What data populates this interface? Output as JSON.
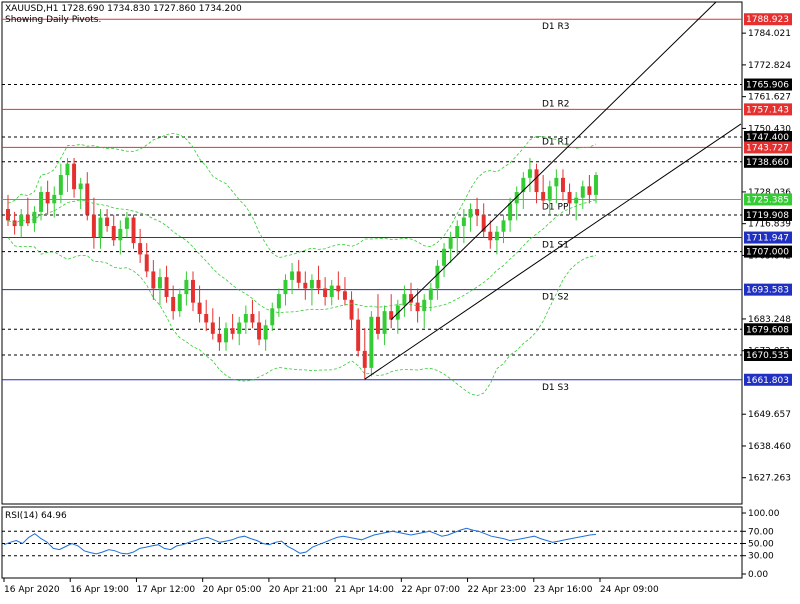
{
  "header": {
    "symbol_line": "XAUUSD,H1  1728.690 1734.830 1727.860 1734.200",
    "subtitle": "Showing Daily Pivots."
  },
  "rsi": {
    "label": "RSI(14) 64.96",
    "ticks": [
      "100.00",
      "70.00",
      "50.00",
      "30.00",
      "0.00"
    ],
    "tick_values": [
      100,
      70,
      50,
      30,
      0
    ],
    "levels": [
      70,
      50,
      30
    ],
    "color": "#1e6fd9",
    "values": [
      48,
      52,
      55,
      50,
      60,
      66,
      58,
      52,
      42,
      40,
      45,
      50,
      46,
      38,
      35,
      33,
      36,
      40,
      38,
      34,
      33,
      36,
      42,
      44,
      46,
      48,
      42,
      40,
      46,
      48,
      52,
      55,
      58,
      60,
      56,
      52,
      54,
      56,
      60,
      62,
      58,
      55,
      50,
      48,
      52,
      54,
      45,
      40,
      34,
      36,
      44,
      48,
      52,
      56,
      60,
      62,
      60,
      58,
      56,
      60,
      64,
      66,
      68,
      70,
      68,
      66,
      64,
      66,
      68,
      70,
      66,
      62,
      64,
      68,
      72,
      75,
      72,
      70,
      66,
      62,
      60,
      58,
      55,
      56,
      58,
      60,
      62,
      58,
      55,
      52,
      54,
      56,
      58,
      60,
      62,
      64,
      65
    ]
  },
  "pivots": [
    {
      "label": "D1 R3",
      "value": "1788.923",
      "color": "#e53030"
    },
    {
      "label": "D1 R2",
      "value": "1757.143",
      "color": "#e53030"
    },
    {
      "label": "D1 R1",
      "value": "1743.727",
      "color": "#e53030"
    },
    {
      "label": "D1 PP",
      "value": "1725.385",
      "color": "#33cc33"
    },
    {
      "label": "D1 S1",
      "value": "1711.947",
      "color": "#2030c0"
    },
    {
      "label": "D1 S2",
      "value": "1693.583",
      "color": "#2030c0"
    },
    {
      "label": "D1 S3",
      "value": "1661.803",
      "color": "#2030c0"
    }
  ],
  "price_tags": [
    {
      "value": "1765.906",
      "style": "dashed"
    },
    {
      "value": "1747.400",
      "style": "dashed"
    },
    {
      "value": "1738.660",
      "style": "dashed"
    },
    {
      "value": "1719.908",
      "style": "dashed"
    },
    {
      "value": "1707.000",
      "style": "dashed"
    },
    {
      "value": "1679.608",
      "style": "dashed"
    },
    {
      "value": "1670.535",
      "style": "dashed"
    }
  ],
  "price_axis_ticks": [
    "1784.021",
    "1772.824",
    "1761.627",
    "1750.430",
    "1728.036",
    "1716.839",
    "1705.642",
    "1683.248",
    "1672.051",
    "1649.657",
    "1638.460",
    "1627.263"
  ],
  "time_axis_labels": [
    "16 Apr 2020",
    "16 Apr 19:00",
    "17 Apr 12:00",
    "20 Apr 05:00",
    "20 Apr 21:00",
    "21 Apr 14:00",
    "22 Apr 07:00",
    "22 Apr 23:00",
    "23 Apr 16:00",
    "24 Apr 09:00"
  ],
  "colors": {
    "bull": "#33cc33",
    "bear": "#e53030",
    "band": "#33cc33",
    "channel": "#000000",
    "grid_dashed": "#000000",
    "tag_bg": "#000000",
    "tag_text": "#ffffff",
    "pivot_tag_red_bg": "#e53030"
  },
  "chart_data": {
    "type": "candlestick",
    "title": "XAUUSD,H1  1728.690 1734.830 1727.860 1734.200",
    "subtitle": "Showing Daily Pivots.",
    "ylim": [
      1618,
      1795
    ],
    "candles": [
      [
        1722,
        1727,
        1716,
        1718
      ],
      [
        1718,
        1721,
        1713,
        1716
      ],
      [
        1716,
        1722,
        1712,
        1720
      ],
      [
        1720,
        1726,
        1716,
        1717
      ],
      [
        1717,
        1723,
        1714,
        1721
      ],
      [
        1721,
        1730,
        1718,
        1728
      ],
      [
        1728,
        1732,
        1720,
        1724
      ],
      [
        1724,
        1730,
        1719,
        1727
      ],
      [
        1727,
        1738,
        1724,
        1734
      ],
      [
        1734,
        1740,
        1728,
        1738
      ],
      [
        1738,
        1740,
        1726,
        1729
      ],
      [
        1729,
        1733,
        1722,
        1731
      ],
      [
        1731,
        1735,
        1718,
        1720
      ],
      [
        1720,
        1726,
        1708,
        1712
      ],
      [
        1712,
        1722,
        1708,
        1719
      ],
      [
        1719,
        1722,
        1714,
        1716
      ],
      [
        1716,
        1720,
        1709,
        1711
      ],
      [
        1711,
        1718,
        1706,
        1715
      ],
      [
        1715,
        1721,
        1712,
        1719
      ],
      [
        1719,
        1720,
        1708,
        1710
      ],
      [
        1710,
        1715,
        1703,
        1706
      ],
      [
        1706,
        1710,
        1698,
        1700
      ],
      [
        1700,
        1704,
        1690,
        1694
      ],
      [
        1694,
        1701,
        1688,
        1698
      ],
      [
        1698,
        1702,
        1689,
        1691
      ],
      [
        1691,
        1695,
        1683,
        1686
      ],
      [
        1686,
        1694,
        1684,
        1692
      ],
      [
        1692,
        1700,
        1688,
        1697
      ],
      [
        1697,
        1700,
        1686,
        1689
      ],
      [
        1689,
        1695,
        1682,
        1685
      ],
      [
        1685,
        1690,
        1679,
        1682
      ],
      [
        1682,
        1687,
        1676,
        1678
      ],
      [
        1678,
        1684,
        1672,
        1675
      ],
      [
        1675,
        1682,
        1672,
        1680
      ],
      [
        1680,
        1685,
        1676,
        1678
      ],
      [
        1678,
        1684,
        1674,
        1682
      ],
      [
        1682,
        1688,
        1678,
        1685
      ],
      [
        1685,
        1690,
        1680,
        1682
      ],
      [
        1682,
        1686,
        1674,
        1676
      ],
      [
        1676,
        1683,
        1672,
        1681
      ],
      [
        1681,
        1689,
        1679,
        1687
      ],
      [
        1687,
        1694,
        1684,
        1692
      ],
      [
        1692,
        1699,
        1688,
        1697
      ],
      [
        1697,
        1703,
        1692,
        1700
      ],
      [
        1700,
        1704,
        1694,
        1696
      ],
      [
        1696,
        1700,
        1690,
        1694
      ],
      [
        1694,
        1699,
        1688,
        1697
      ],
      [
        1697,
        1702,
        1692,
        1694
      ],
      [
        1694,
        1698,
        1688,
        1691
      ],
      [
        1691,
        1697,
        1688,
        1695
      ],
      [
        1695,
        1700,
        1690,
        1693
      ],
      [
        1693,
        1698,
        1688,
        1690
      ],
      [
        1690,
        1693,
        1680,
        1683
      ],
      [
        1683,
        1687,
        1670,
        1672
      ],
      [
        1672,
        1680,
        1662,
        1666
      ],
      [
        1666,
        1686,
        1663,
        1684
      ],
      [
        1684,
        1692,
        1676,
        1678
      ],
      [
        1678,
        1688,
        1674,
        1686
      ],
      [
        1686,
        1692,
        1680,
        1683
      ],
      [
        1683,
        1690,
        1678,
        1688
      ],
      [
        1688,
        1695,
        1684,
        1692
      ],
      [
        1692,
        1696,
        1686,
        1689
      ],
      [
        1689,
        1694,
        1682,
        1686
      ],
      [
        1686,
        1692,
        1680,
        1690
      ],
      [
        1690,
        1696,
        1686,
        1694
      ],
      [
        1694,
        1704,
        1690,
        1702
      ],
      [
        1702,
        1710,
        1698,
        1708
      ],
      [
        1708,
        1714,
        1703,
        1712
      ],
      [
        1712,
        1718,
        1706,
        1716
      ],
      [
        1716,
        1722,
        1710,
        1719
      ],
      [
        1719,
        1724,
        1714,
        1722
      ],
      [
        1722,
        1726,
        1716,
        1720
      ],
      [
        1720,
        1724,
        1712,
        1714
      ],
      [
        1714,
        1718,
        1708,
        1711
      ],
      [
        1711,
        1716,
        1706,
        1714
      ],
      [
        1714,
        1720,
        1710,
        1718
      ],
      [
        1718,
        1726,
        1714,
        1724
      ],
      [
        1724,
        1730,
        1718,
        1728
      ],
      [
        1728,
        1735,
        1722,
        1733
      ],
      [
        1733,
        1740,
        1728,
        1736
      ],
      [
        1736,
        1738,
        1724,
        1728
      ],
      [
        1728,
        1734,
        1722,
        1725
      ],
      [
        1725,
        1732,
        1720,
        1730
      ],
      [
        1730,
        1736,
        1724,
        1733
      ],
      [
        1733,
        1736,
        1725,
        1728
      ],
      [
        1728,
        1731,
        1720,
        1724
      ],
      [
        1724,
        1728,
        1718,
        1726
      ],
      [
        1726,
        1732,
        1722,
        1730
      ],
      [
        1730,
        1734,
        1724,
        1727
      ],
      [
        1727,
        1735,
        1724,
        1734
      ]
    ],
    "pivot_levels": {
      "R3": 1788.923,
      "R2": 1757.143,
      "R1": 1743.727,
      "PP": 1725.385,
      "S1": 1711.947,
      "S2": 1693.583,
      "S3": 1661.803
    },
    "rsi_label": "RSI(14) 64.96"
  }
}
